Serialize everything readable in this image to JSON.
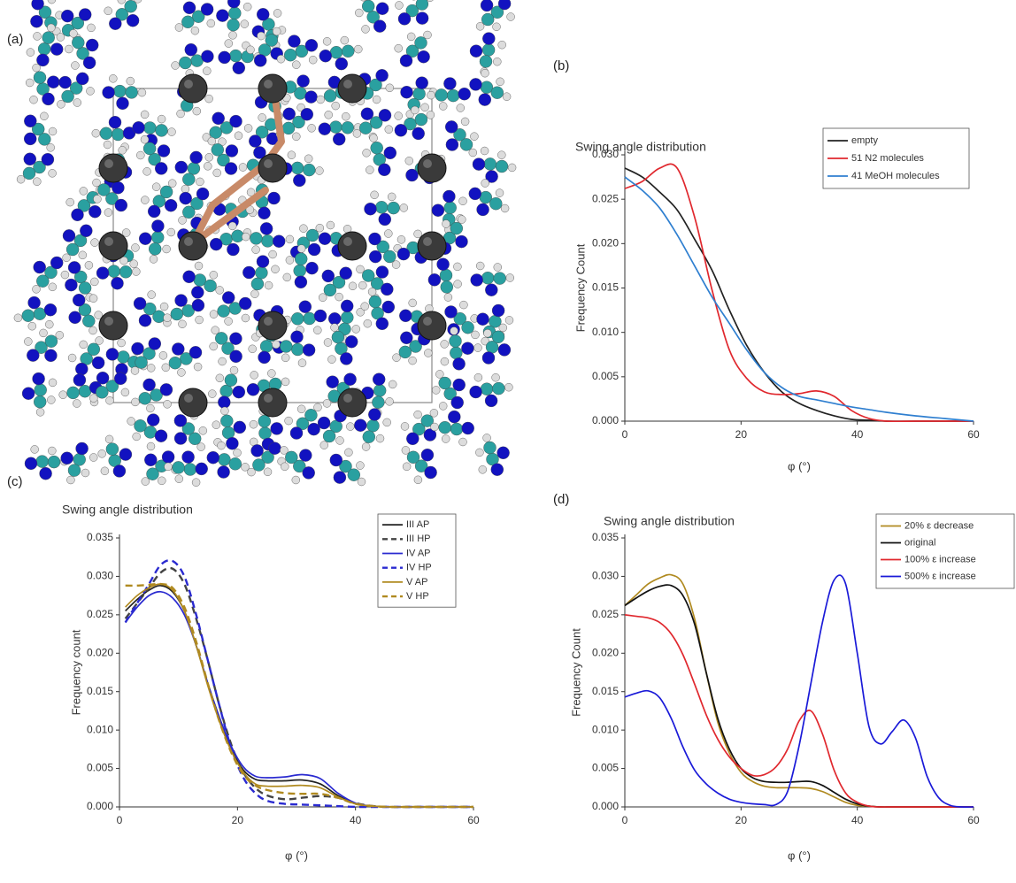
{
  "panel_labels": [
    "(a)",
    "(b)",
    "(c)",
    "(d)"
  ],
  "chart_data": [
    {
      "type": "line",
      "title": "Swing angle distribution",
      "x_label": "φ (°)",
      "y_label": "Frequency Count",
      "x": [
        0,
        3,
        6,
        9,
        12,
        15,
        18,
        21,
        24,
        27,
        30,
        33,
        36,
        39,
        42,
        45,
        50,
        55,
        60
      ],
      "xlim": [
        0,
        60
      ],
      "xticks": [
        0,
        20,
        40,
        60
      ],
      "ylim": [
        0,
        0.03
      ],
      "yticks": [
        {
          "value": 0,
          "label": "0.000"
        },
        {
          "value": 0.005,
          "label": "0.005"
        },
        {
          "value": 0.01,
          "label": "0.010"
        },
        {
          "value": 0.015,
          "label": "0.015"
        },
        {
          "value": 0.02,
          "label": "0.020"
        },
        {
          "value": 0.025,
          "label": "0.025"
        },
        {
          "value": 0.03,
          "label": "0.030"
        }
      ],
      "legend": "upper right",
      "series": [
        {
          "name": "empty",
          "color": "#222222",
          "values": [
            0.0285,
            0.0275,
            0.0258,
            0.0238,
            0.0205,
            0.017,
            0.0125,
            0.0085,
            0.0055,
            0.0033,
            0.002,
            0.0012,
            0.0006,
            0.0002,
            0.0001,
            0,
            0,
            0,
            0
          ]
        },
        {
          "name": "51 N2 molecules",
          "color": "#e0282e",
          "values": [
            0.0262,
            0.027,
            0.0285,
            0.0285,
            0.023,
            0.0148,
            0.008,
            0.0048,
            0.0033,
            0.003,
            0.0031,
            0.0034,
            0.0028,
            0.0012,
            0.0003,
            0,
            0,
            0,
            0
          ]
        },
        {
          "name": "41 MeOH molecules",
          "color": "#2f7fd0",
          "values": [
            0.0275,
            0.026,
            0.024,
            0.021,
            0.0175,
            0.014,
            0.011,
            0.008,
            0.0055,
            0.0038,
            0.0028,
            0.0024,
            0.002,
            0.0016,
            0.0013,
            0.001,
            0.0006,
            0.0003,
            0
          ]
        }
      ]
    },
    {
      "type": "line",
      "title": "Swing angle distribution",
      "x_label": "φ (°)",
      "y_label": "Frequency count",
      "x": [
        1,
        3,
        5,
        7,
        9,
        11,
        13,
        15,
        17,
        19,
        21,
        23,
        25,
        28,
        31,
        34,
        37,
        40,
        43,
        46,
        50,
        60
      ],
      "xlim": [
        0,
        60
      ],
      "xticks": [
        0,
        20,
        40,
        60
      ],
      "ylim": [
        0,
        0.035
      ],
      "yticks": [
        {
          "value": 0,
          "label": "0.000"
        },
        {
          "value": 0.005,
          "label": "0.005"
        },
        {
          "value": 0.01,
          "label": "0.010"
        },
        {
          "value": 0.015,
          "label": "0.015"
        },
        {
          "value": 0.02,
          "label": "0.020"
        },
        {
          "value": 0.025,
          "label": "0.025"
        },
        {
          "value": 0.03,
          "label": "0.030"
        },
        {
          "value": 0.035,
          "label": "0.035"
        }
      ],
      "legend": "upper right",
      "series": [
        {
          "name": "III AP",
          "color": "#222222",
          "dash": false,
          "values": [
            0.0255,
            0.027,
            0.0282,
            0.0288,
            0.028,
            0.0255,
            0.021,
            0.016,
            0.0115,
            0.0075,
            0.0048,
            0.0036,
            0.0034,
            0.0034,
            0.0035,
            0.003,
            0.0015,
            0.0004,
            0.0001,
            0,
            0,
            0
          ]
        },
        {
          "name": "III HP",
          "color": "#444444",
          "dash": true,
          "values": [
            0.0245,
            0.0265,
            0.0285,
            0.0305,
            0.031,
            0.029,
            0.0245,
            0.019,
            0.013,
            0.008,
            0.0045,
            0.0025,
            0.0015,
            0.001,
            0.0012,
            0.0014,
            0.0012,
            0.0005,
            0.0001,
            0,
            0,
            0
          ]
        },
        {
          "name": "IV AP",
          "color": "#2a2ad0",
          "dash": false,
          "values": [
            0.024,
            0.026,
            0.0275,
            0.028,
            0.0272,
            0.025,
            0.021,
            0.016,
            0.0115,
            0.0078,
            0.0052,
            0.004,
            0.0038,
            0.0039,
            0.0042,
            0.0037,
            0.0018,
            0.0005,
            0.0001,
            0,
            0,
            0
          ]
        },
        {
          "name": "IV HP",
          "color": "#2a2ad0",
          "dash": true,
          "values": [
            0.024,
            0.0265,
            0.029,
            0.0315,
            0.032,
            0.03,
            0.025,
            0.019,
            0.013,
            0.0075,
            0.0038,
            0.0018,
            0.0008,
            0.0004,
            0.0003,
            0.0002,
            0.0001,
            0,
            0,
            0,
            0,
            0
          ]
        },
        {
          "name": "V AP",
          "color": "#b08a20",
          "dash": false,
          "values": [
            0.026,
            0.0275,
            0.0285,
            0.029,
            0.0282,
            0.0255,
            0.021,
            0.0157,
            0.011,
            0.0072,
            0.0045,
            0.003,
            0.0027,
            0.0027,
            0.0028,
            0.0025,
            0.0013,
            0.0004,
            0.0001,
            0,
            0,
            0
          ]
        },
        {
          "name": "V HP",
          "color": "#b08a20",
          "dash": true,
          "values": [
            0.0288,
            0.0288,
            0.0289,
            0.029,
            0.0285,
            0.026,
            0.0215,
            0.016,
            0.011,
            0.007,
            0.0042,
            0.0028,
            0.0022,
            0.0018,
            0.0017,
            0.0017,
            0.0012,
            0.0004,
            0.0001,
            0,
            0,
            0
          ]
        }
      ]
    },
    {
      "type": "line",
      "title": "Swing angle distribution",
      "x_label": "φ (°)",
      "y_label": "Frequency Count",
      "x": [
        0,
        2,
        4,
        6,
        8,
        10,
        12,
        14,
        16,
        18,
        20,
        22,
        24,
        26,
        28,
        30,
        32,
        34,
        36,
        38,
        40,
        42,
        44,
        46,
        48,
        50,
        52,
        54,
        56,
        58,
        60
      ],
      "xlim": [
        0,
        60
      ],
      "xticks": [
        0,
        20,
        40,
        60
      ],
      "ylim": [
        0,
        0.035
      ],
      "yticks": [
        {
          "value": 0,
          "label": "0.000"
        },
        {
          "value": 0.005,
          "label": "0.005"
        },
        {
          "value": 0.01,
          "label": "0.010"
        },
        {
          "value": 0.015,
          "label": "0.015"
        },
        {
          "value": 0.02,
          "label": "0.020"
        },
        {
          "value": 0.025,
          "label": "0.025"
        },
        {
          "value": 0.03,
          "label": "0.030"
        },
        {
          "value": 0.035,
          "label": "0.035"
        }
      ],
      "legend": "upper right",
      "series": [
        {
          "name": "20% ε decrease",
          "color": "#b08a20",
          "values": [
            0.0262,
            0.0276,
            0.029,
            0.0298,
            0.0302,
            0.029,
            0.0245,
            0.0175,
            0.011,
            0.007,
            0.0045,
            0.0033,
            0.0027,
            0.0025,
            0.0025,
            0.0025,
            0.0024,
            0.002,
            0.0013,
            0.0006,
            0.0002,
            0.0001,
            0,
            0,
            0,
            0,
            0,
            0,
            0,
            0,
            0
          ]
        },
        {
          "name": "original",
          "color": "#111111",
          "values": [
            0.0262,
            0.0272,
            0.0281,
            0.0287,
            0.0288,
            0.0275,
            0.0238,
            0.0175,
            0.0115,
            0.0075,
            0.005,
            0.0038,
            0.0033,
            0.0032,
            0.0032,
            0.0033,
            0.0033,
            0.0028,
            0.0019,
            0.001,
            0.0004,
            0.0001,
            0,
            0,
            0,
            0,
            0,
            0,
            0,
            0,
            0
          ]
        },
        {
          "name": "100% ε increase",
          "color": "#e0282e",
          "values": [
            0.025,
            0.0248,
            0.0246,
            0.024,
            0.0225,
            0.0198,
            0.016,
            0.012,
            0.0088,
            0.0065,
            0.005,
            0.0041,
            0.0042,
            0.0052,
            0.0075,
            0.0112,
            0.0125,
            0.0095,
            0.0048,
            0.0018,
            0.0006,
            0.0001,
            0,
            0,
            0,
            0,
            0,
            0,
            0,
            0,
            0
          ]
        },
        {
          "name": "500% ε increase",
          "color": "#1a1ad8",
          "values": [
            0.0143,
            0.0148,
            0.0151,
            0.0142,
            0.0115,
            0.0078,
            0.0048,
            0.003,
            0.0018,
            0.001,
            0.0006,
            0.0004,
            0.0003,
            0.0003,
            0.002,
            0.008,
            0.016,
            0.024,
            0.0295,
            0.029,
            0.02,
            0.0105,
            0.0082,
            0.0098,
            0.0113,
            0.009,
            0.004,
            0.0012,
            0.0002,
            0,
            0
          ]
        }
      ]
    }
  ]
}
